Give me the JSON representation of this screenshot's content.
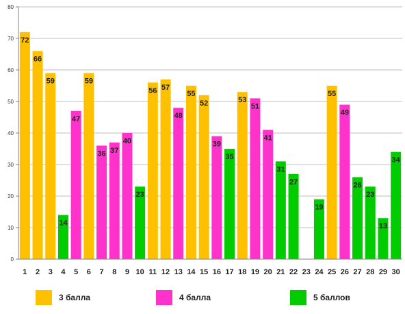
{
  "chart_data": {
    "type": "bar",
    "categories": [
      "1",
      "2",
      "3",
      "4",
      "5",
      "6",
      "7",
      "8",
      "9",
      "10",
      "11",
      "12",
      "13",
      "14",
      "15",
      "16",
      "17",
      "18",
      "19",
      "20",
      "21",
      "22",
      "23",
      "24",
      "25",
      "26",
      "27",
      "28",
      "29",
      "30"
    ],
    "values": [
      72,
      66,
      59,
      14,
      47,
      59,
      36,
      37,
      40,
      23,
      56,
      57,
      48,
      55,
      52,
      39,
      35,
      53,
      51,
      41,
      31,
      27,
      null,
      19,
      55,
      49,
      26,
      23,
      13,
      34
    ],
    "series_index": [
      0,
      0,
      0,
      2,
      1,
      0,
      1,
      1,
      1,
      2,
      0,
      0,
      1,
      0,
      0,
      1,
      2,
      0,
      1,
      1,
      2,
      2,
      null,
      2,
      0,
      1,
      2,
      2,
      2,
      2
    ],
    "series": [
      {
        "name": "3 балла",
        "color": "#FFC000"
      },
      {
        "name": "4 балла",
        "color": "#FF33CC"
      },
      {
        "name": "5 баллов",
        "color": "#00CC00"
      }
    ],
    "ylim": [
      0,
      80
    ],
    "yticks": [
      0,
      10,
      20,
      30,
      40,
      50,
      60,
      70,
      80
    ],
    "grid": true,
    "legend_position": "bottom"
  }
}
